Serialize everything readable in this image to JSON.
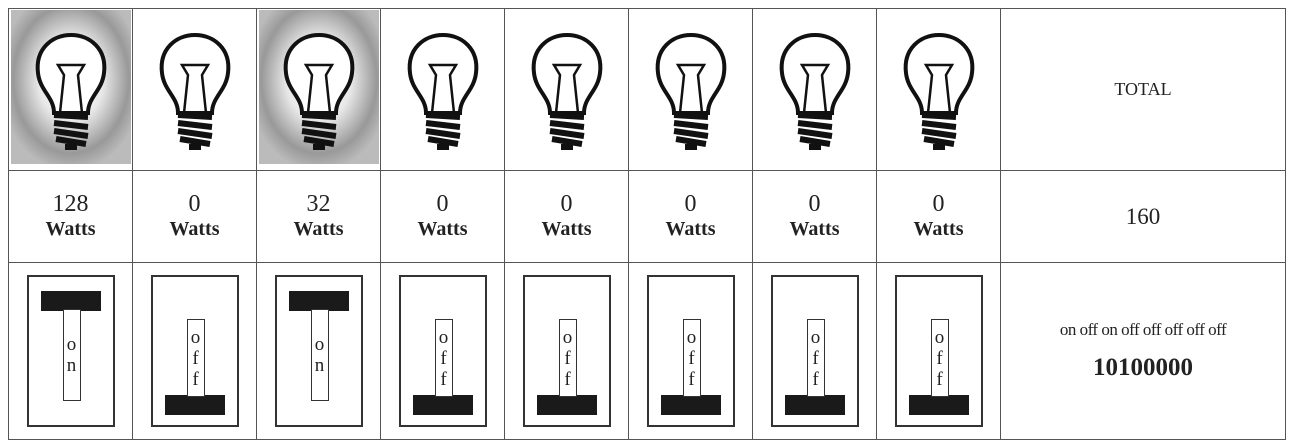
{
  "columns": [
    {
      "lit": true,
      "watts": 128,
      "unit": "Watts",
      "switch": "on"
    },
    {
      "lit": false,
      "watts": 0,
      "unit": "Watts",
      "switch": "off"
    },
    {
      "lit": true,
      "watts": 32,
      "unit": "Watts",
      "switch": "on"
    },
    {
      "lit": false,
      "watts": 0,
      "unit": "Watts",
      "switch": "off"
    },
    {
      "lit": false,
      "watts": 0,
      "unit": "Watts",
      "switch": "off"
    },
    {
      "lit": false,
      "watts": 0,
      "unit": "Watts",
      "switch": "off"
    },
    {
      "lit": false,
      "watts": 0,
      "unit": "Watts",
      "switch": "off"
    },
    {
      "lit": false,
      "watts": 0,
      "unit": "Watts",
      "switch": "off"
    }
  ],
  "total": {
    "label": "TOTAL",
    "watts": 160,
    "states": "on off on off off off off off",
    "binary": "10100000"
  }
}
